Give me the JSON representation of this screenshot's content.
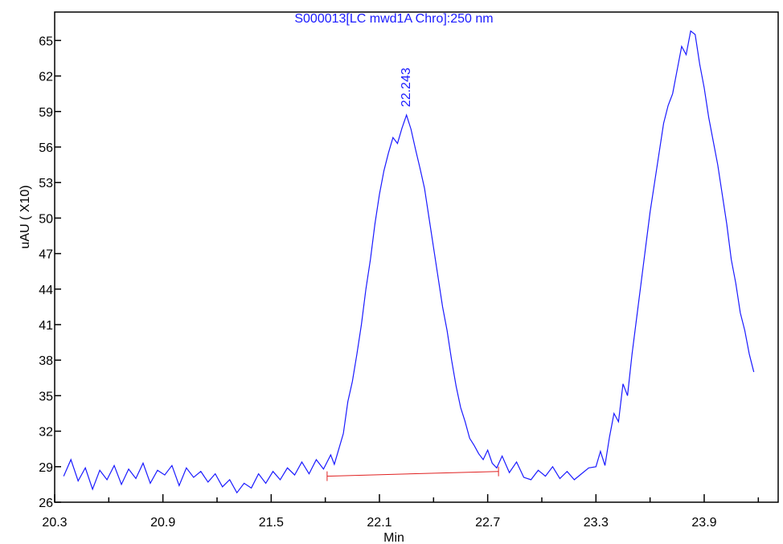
{
  "chart_data": {
    "type": "line",
    "title": "S000013[LC mwd1A Chro]:250 nm",
    "xlabel": "Min",
    "ylabel": "uAU ( X10)",
    "xlim": [
      20.3,
      24.31
    ],
    "ylim": [
      26,
      67.4
    ],
    "xticks": [
      20.3,
      20.9,
      21.5,
      22.1,
      22.7,
      23.3,
      23.9
    ],
    "xticks_minor": [
      20.6,
      21.2,
      21.8,
      22.4,
      23.0,
      23.6,
      24.2
    ],
    "yticks": [
      26,
      29,
      32,
      35,
      38,
      41,
      44,
      47,
      50,
      53,
      56,
      59,
      62,
      65
    ],
    "x": [
      20.35,
      20.39,
      20.43,
      20.47,
      20.51,
      20.55,
      20.59,
      20.63,
      20.67,
      20.71,
      20.75,
      20.79,
      20.83,
      20.87,
      20.91,
      20.95,
      20.99,
      21.03,
      21.07,
      21.11,
      21.15,
      21.19,
      21.23,
      21.27,
      21.31,
      21.35,
      21.39,
      21.43,
      21.47,
      21.51,
      21.55,
      21.59,
      21.63,
      21.67,
      21.71,
      21.75,
      21.79,
      21.83,
      21.85,
      21.875,
      21.9,
      21.925,
      21.95,
      21.975,
      22.0,
      22.025,
      22.05,
      22.075,
      22.1,
      22.125,
      22.15,
      22.175,
      22.2,
      22.225,
      22.25,
      22.275,
      22.3,
      22.325,
      22.35,
      22.375,
      22.4,
      22.425,
      22.45,
      22.475,
      22.5,
      22.525,
      22.55,
      22.575,
      22.6,
      22.625,
      22.65,
      22.675,
      22.7,
      22.725,
      22.75,
      22.78,
      22.82,
      22.86,
      22.9,
      22.94,
      22.98,
      23.02,
      23.06,
      23.1,
      23.14,
      23.18,
      23.22,
      23.26,
      23.3,
      23.325,
      23.35,
      23.375,
      23.4,
      23.425,
      23.45,
      23.475,
      23.5,
      23.525,
      23.55,
      23.575,
      23.6,
      23.625,
      23.65,
      23.675,
      23.7,
      23.725,
      23.75,
      23.775,
      23.8,
      23.825,
      23.85,
      23.875,
      23.9,
      23.925,
      23.95,
      23.975,
      24.0,
      24.025,
      24.05,
      24.075,
      24.1,
      24.125,
      24.15,
      24.175
    ],
    "series": [
      {
        "name": "S000013",
        "color": "#1a1aff",
        "values": [
          28.2,
          29.6,
          27.8,
          28.9,
          27.1,
          28.7,
          27.9,
          29.1,
          27.5,
          28.8,
          28.0,
          29.3,
          27.6,
          28.7,
          28.3,
          29.1,
          27.4,
          28.9,
          28.1,
          28.6,
          27.7,
          28.4,
          27.3,
          27.9,
          26.8,
          27.6,
          27.2,
          28.4,
          27.6,
          28.6,
          27.9,
          28.9,
          28.3,
          29.4,
          28.4,
          29.6,
          28.8,
          30.0,
          29.2,
          30.5,
          31.8,
          34.5,
          36.2,
          38.5,
          41.0,
          44.0,
          46.5,
          49.5,
          52.0,
          54.0,
          55.5,
          56.8,
          56.3,
          57.6,
          58.7,
          57.5,
          55.8,
          54.2,
          52.5,
          50.0,
          47.5,
          45.0,
          42.5,
          40.5,
          38.0,
          35.8,
          34.0,
          32.8,
          31.4,
          30.8,
          30.1,
          29.6,
          30.4,
          29.3,
          28.9,
          29.9,
          28.5,
          29.4,
          28.1,
          27.9,
          28.7,
          28.2,
          29.0,
          28.0,
          28.6,
          27.9,
          28.4,
          28.9,
          29.0,
          30.3,
          29.1,
          31.5,
          33.5,
          32.8,
          36.0,
          35.0,
          38.5,
          41.5,
          44.5,
          47.5,
          50.5,
          53.0,
          55.5,
          58.0,
          59.5,
          60.5,
          62.5,
          64.5,
          63.8,
          65.8,
          65.5,
          63.0,
          61.0,
          58.5,
          56.5,
          54.5,
          52.0,
          49.5,
          46.5,
          44.5,
          42.0,
          40.5,
          38.5,
          37.0
        ]
      }
    ],
    "baseline": {
      "color": "#e02020",
      "x": [
        21.81,
        22.76
      ],
      "y": [
        28.2,
        28.6
      ]
    },
    "annotations": [
      {
        "text": "22.243",
        "x": 22.243,
        "y": 58.7
      }
    ]
  }
}
